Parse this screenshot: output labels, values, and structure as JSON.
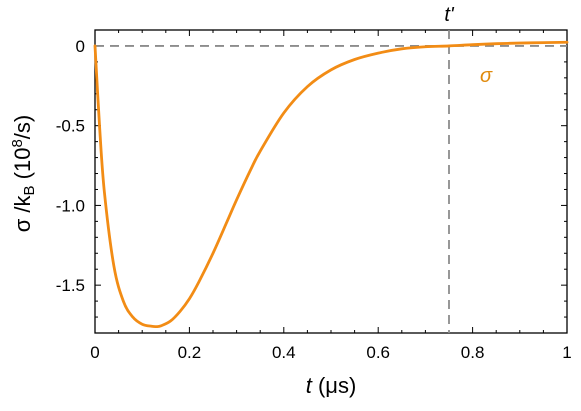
{
  "chart_data": {
    "type": "line",
    "title": "",
    "xlabel_italic": "t",
    "xlabel_rest": " (μs)",
    "ylabel": "σ /k",
    "ylabel_sub": "B",
    "ylabel_unit": " (10",
    "ylabel_sup": "8",
    "ylabel_unit_end": "/s)",
    "xlim": [
      0,
      1
    ],
    "ylim": [
      -1.8,
      0.1
    ],
    "xticks": [
      0,
      0.2,
      0.4,
      0.6,
      0.8,
      1
    ],
    "xtick_labels": [
      "0",
      "0.2",
      "0.4",
      "0.6",
      "0.8",
      "1"
    ],
    "yticks": [
      0,
      -0.5,
      -1.0,
      -1.5
    ],
    "ytick_labels": [
      "0",
      "-0.5",
      "-1.0",
      "-1.5"
    ],
    "grid": false,
    "legend": "none",
    "reference_lines": {
      "horizontal_y": 0,
      "vertical_x": 0.75,
      "vertical_label": "t'",
      "style": "dashed",
      "color": "#8c8c8c"
    },
    "series": [
      {
        "label": "σ",
        "color": "#f28c15",
        "x": [
          0,
          0.01,
          0.02,
          0.04,
          0.06,
          0.08,
          0.1,
          0.12,
          0.13,
          0.14,
          0.16,
          0.18,
          0.2,
          0.22,
          0.25,
          0.28,
          0.3,
          0.33,
          0.35,
          0.4,
          0.45,
          0.5,
          0.55,
          0.6,
          0.65,
          0.7,
          0.75,
          0.8,
          0.85,
          0.9,
          0.95,
          1.0
        ],
        "y": [
          0,
          -0.52,
          -0.92,
          -1.38,
          -1.6,
          -1.7,
          -1.745,
          -1.758,
          -1.76,
          -1.755,
          -1.725,
          -1.665,
          -1.585,
          -1.48,
          -1.3,
          -1.1,
          -0.965,
          -0.775,
          -0.66,
          -0.42,
          -0.255,
          -0.15,
          -0.085,
          -0.045,
          -0.018,
          -0.005,
          0.0,
          0.008,
          0.014,
          0.018,
          0.021,
          0.023
        ]
      }
    ],
    "annotation": {
      "text": "σ",
      "color": "#e08a0c"
    }
  }
}
